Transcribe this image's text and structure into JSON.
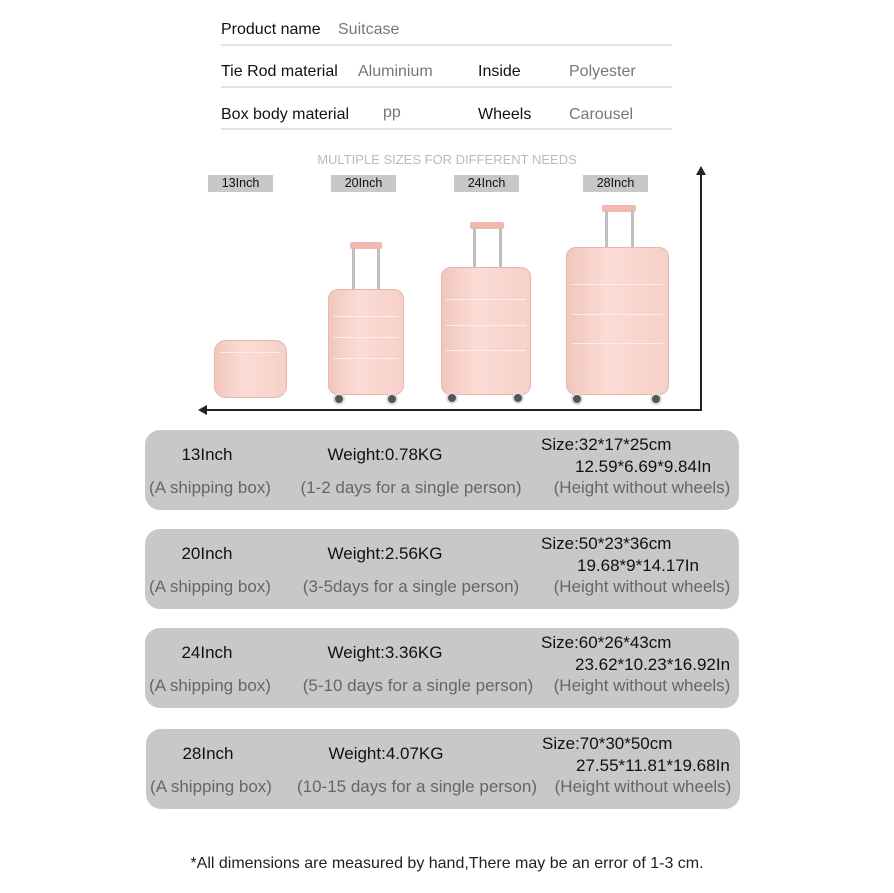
{
  "specs": {
    "product_name_label": "Product name",
    "product_name_value": "Suitcase",
    "tie_rod_label": "Tie Rod material",
    "tie_rod_value": "Aluminium",
    "inside_label": "Inside",
    "inside_value": "Polyester",
    "body_label": "Box body material",
    "body_value": "pp",
    "wheels_label": "Wheels",
    "wheels_value": "Carousel"
  },
  "subtitle": "MULTIPLE SIZES FOR DIFFERENT NEEDS",
  "size_tags": [
    "13Inch",
    "20Inch",
    "24Inch",
    "28Inch"
  ],
  "product_color": "#f8d4cc",
  "rows": [
    {
      "size": "13Inch",
      "box": "(A shipping box)",
      "weight": "Weight:0.78KG",
      "days": "(1-2 days for a single person)",
      "dims_cm": "Size:32*17*25cm",
      "dims_in": "12.59*6.69*9.84In",
      "note": "(Height without wheels)"
    },
    {
      "size": "20Inch",
      "box": "(A shipping box)",
      "weight": "Weight:2.56KG",
      "days": "(3-5days for a single person)",
      "dims_cm": "Size:50*23*36cm",
      "dims_in": "19.68*9*14.17In",
      "note": "(Height without wheels)"
    },
    {
      "size": "24Inch",
      "box": "(A shipping box)",
      "weight": "Weight:3.36KG",
      "days": "(5-10 days for a single person)",
      "dims_cm": "Size:60*26*43cm",
      "dims_in": "23.62*10.23*16.92In",
      "note": "(Height without wheels)"
    },
    {
      "size": "28Inch",
      "box": "(A shipping box)",
      "weight": "Weight:4.07KG",
      "days": "(10-15 days for a single person)",
      "dims_cm": "Size:70*30*50cm",
      "dims_in": "27.55*11.81*19.68In",
      "note": "(Height without wheels)"
    }
  ],
  "footnote": "*All dimensions are measured by hand,There may be an error of 1-3 cm."
}
